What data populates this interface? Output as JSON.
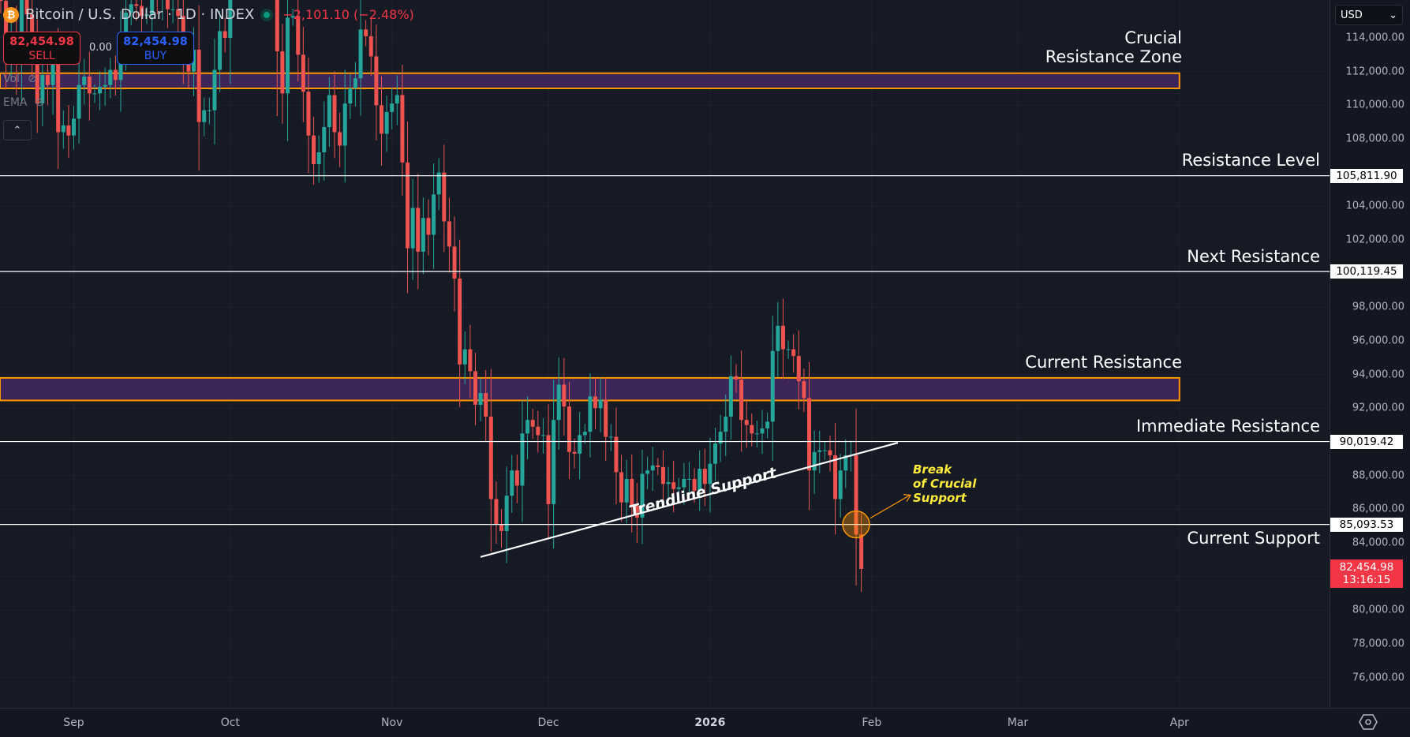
{
  "header": {
    "symbol_icon": "bitcoin-icon",
    "title": "Bitcoin / U.S. Dollar · 1D · INDEX",
    "change": "−2,101.10 (−2.48%)",
    "status": "market-open-dot"
  },
  "trade": {
    "sell_price": "82,454.98",
    "sell_label": "SELL",
    "spread": "0.00",
    "buy_price": "82,454.98",
    "buy_label": "BUY"
  },
  "indicators": [
    {
      "label": "Vol",
      "icon": "eye-off-icon"
    },
    {
      "label": "EMA",
      "icon": "eye-off-icon"
    }
  ],
  "currency": "USD",
  "colors": {
    "up": "#26a69a",
    "down": "#ef5350",
    "zone_border": "#ff9800",
    "zone_fill": "#4a2a6a",
    "last_price": "#f23645",
    "annotation_yellow": "#ffeb3b"
  },
  "chart_data": {
    "type": "candlestick",
    "start_date": "2025-08-18",
    "interval": "1D",
    "first_open": 117.0,
    "closes_thousands_usd": [
      116.2,
      112.9,
      114.2,
      112.5,
      116.9,
      115.4,
      113.5,
      110.1,
      111.8,
      111.2,
      112.6,
      108.4,
      108.8,
      108.2,
      109.2,
      111.2,
      111.7,
      110.7,
      110.7,
      111.1,
      111.2,
      112.1,
      111.5,
      113.9,
      115.5,
      116.0,
      115.9,
      115.3,
      115.4,
      116.8,
      116.5,
      117.1,
      115.7,
      115.7,
      115.3,
      112.7,
      112.0,
      113.3,
      109.0,
      109.7,
      109.7,
      112.1,
      114.4,
      114.0,
      118.6,
      120.6,
      122.3,
      122.4,
      123.5,
      124.7,
      121.4,
      123.3,
      121.7,
      113.2,
      110.7,
      115.2,
      115.3,
      113.0,
      110.8,
      108.2,
      106.5,
      107.2,
      108.7,
      110.6,
      108.4,
      107.6,
      110.1,
      111.0,
      111.6,
      114.5,
      114.1,
      112.9,
      110.0,
      108.3,
      109.6,
      110.1,
      110.6,
      106.6,
      101.5,
      103.9,
      101.3,
      103.3,
      102.3,
      104.7,
      106.0,
      103.1,
      101.6,
      99.7,
      94.6,
      95.5,
      94.2,
      92.2,
      92.9,
      91.5,
      86.6,
      85.1,
      84.7,
      86.8,
      88.3,
      87.4,
      90.5,
      91.3,
      90.9,
      90.4,
      90.4,
      86.3,
      91.3,
      93.4,
      92.1,
      89.4,
      89.3,
      90.4,
      90.6,
      92.7,
      92.0,
      92.5,
      90.3,
      90.3,
      88.2,
      86.4,
      87.8,
      86.2,
      85.5,
      88.1,
      88.3,
      88.6,
      88.5,
      87.5,
      87.6,
      87.2,
      87.3,
      87.8,
      87.8,
      87.1,
      88.4,
      87.5,
      88.7,
      89.9,
      90.6,
      91.5,
      93.9,
      93.7,
      91.3,
      91.0,
      90.5,
      90.5,
      90.8,
      91.2,
      95.4,
      96.9,
      95.5,
      95.5,
      95.1,
      93.6,
      92.6,
      88.3,
      89.4,
      89.5,
      89.5,
      89.2,
      86.6,
      88.3,
      89.2,
      89.2,
      84.5,
      82.45
    ],
    "y_ticks": [
      "114,000.00",
      "112,000.00",
      "110,000.00",
      "108,000.00",
      "104,000.00",
      "102,000.00",
      "98,000.00",
      "96,000.00",
      "94,000.00",
      "92,000.00",
      "88,000.00",
      "86,000.00",
      "84,000.00",
      "80,000.00",
      "78,000.00",
      "76,000.00"
    ],
    "y_tick_values": [
      114000,
      112000,
      110000,
      108000,
      104000,
      102000,
      98000,
      96000,
      94000,
      92000,
      88000,
      86000,
      84000,
      80000,
      78000,
      76000
    ],
    "ylim": [
      74200,
      116250
    ],
    "x_ticks": [
      {
        "label": "Sep",
        "date": "2025-09-01"
      },
      {
        "label": "Oct",
        "date": "2025-10-01"
      },
      {
        "label": "Nov",
        "date": "2025-11-01"
      },
      {
        "label": "Dec",
        "date": "2025-12-01"
      },
      {
        "label": "2026",
        "date": "2026-01-01",
        "bold": true
      },
      {
        "label": "Feb",
        "date": "2026-02-01"
      },
      {
        "label": "Mar",
        "date": "2026-03-01"
      },
      {
        "label": "Apr",
        "date": "2026-04-01"
      }
    ],
    "last_price": {
      "value": "82,454.98",
      "countdown": "13:16:15",
      "price": 82454.98
    },
    "levels": [
      {
        "label": "Resistance Level",
        "price": 105811.9,
        "price_label": "105,811.90"
      },
      {
        "label": "Next Resistance",
        "price": 100119.45,
        "price_label": "100,119.45"
      },
      {
        "label": "Immediate Resistance",
        "price": 90019.42,
        "price_label": "90,019.42"
      },
      {
        "label": "Current Support",
        "price": 85093.53,
        "price_label": "85,093.53"
      }
    ],
    "zones": [
      {
        "label_line1": "Crucial",
        "label_line2": "Resistance Zone",
        "top": 111900,
        "bottom": 111000,
        "end_date": "2026-04-01"
      },
      {
        "label_line1": "",
        "label_line2": "Current Resistance",
        "top": 93800,
        "bottom": 92460,
        "end_date": "2026-04-01"
      }
    ],
    "trendline": {
      "label": "Trendline Support",
      "start": {
        "date": "2025-11-18",
        "price": 83160
      },
      "end": {
        "date": "2026-02-06",
        "price": 89950
      }
    },
    "break_annotation": {
      "line1": "Break",
      "line2": "of Crucial",
      "line3": "Support",
      "date": "2026-01-29",
      "price": 85093
    }
  }
}
